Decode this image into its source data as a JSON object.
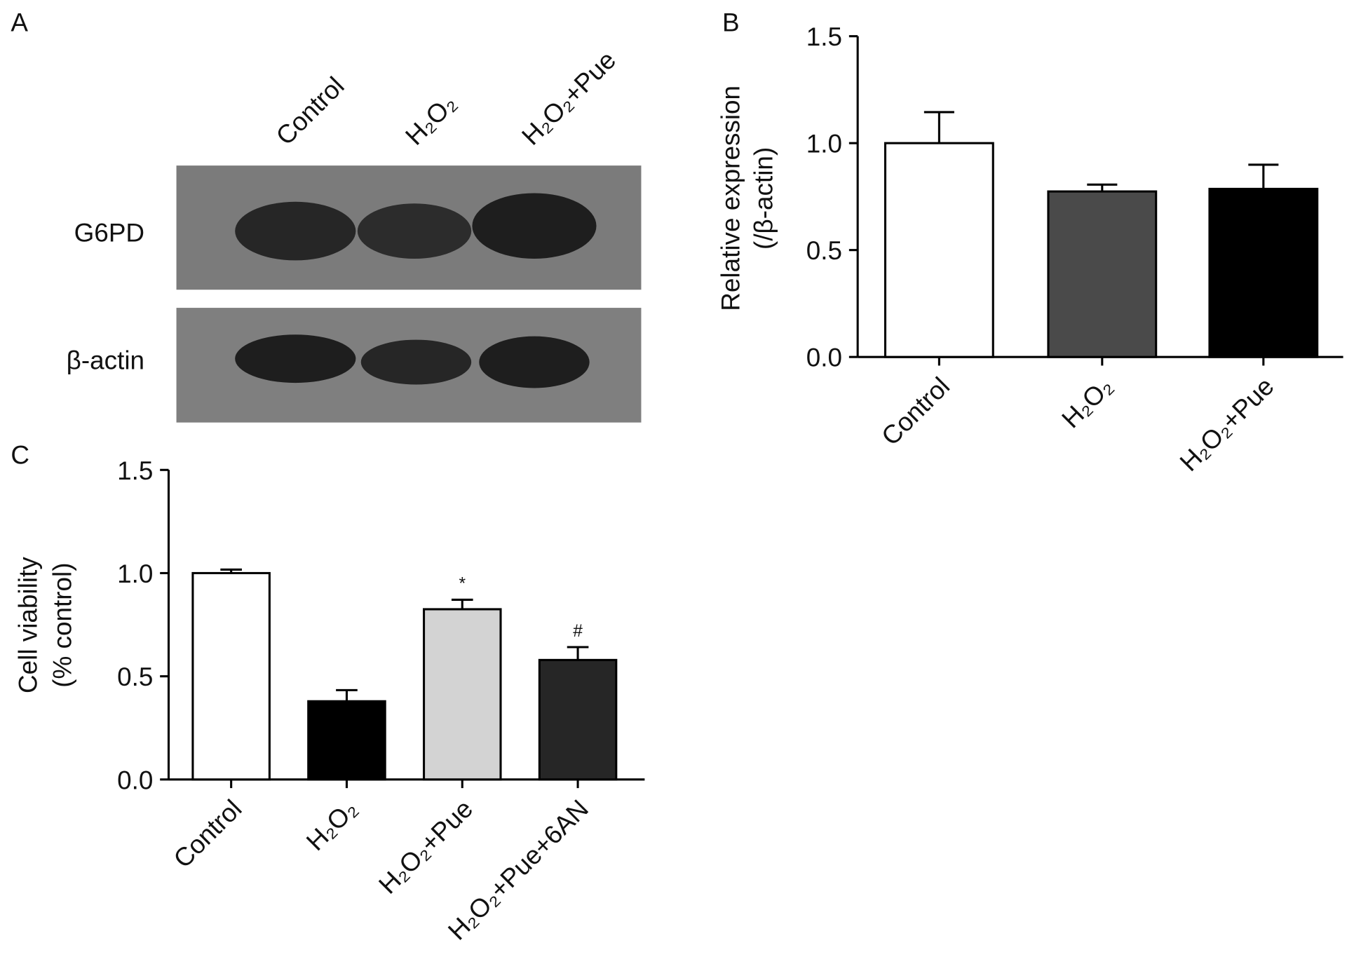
{
  "blot": {
    "panel_label": "A",
    "lanes": [
      "Control",
      "H₂O₂",
      "H₂O₂+Pue"
    ],
    "rows": [
      "G6PD",
      "β-actin"
    ]
  },
  "chart_data": [
    {
      "type": "bar",
      "panel_label": "B",
      "ylabel": [
        "Relative expression",
        "(/β-actin)"
      ],
      "categories": [
        "Control",
        "H₂O₂",
        "H₂O₂+Pue"
      ],
      "values": [
        1.0,
        0.774,
        0.786
      ],
      "errors": [
        0.145,
        0.032,
        0.113
      ],
      "colors": [
        "#ffffff",
        "#4a4a4a",
        "#000000"
      ],
      "ylim": [
        0,
        1.5
      ],
      "yticks": [
        {
          "value": 0,
          "label": "0.0"
        },
        {
          "value": 0.5,
          "label": "0.5"
        },
        {
          "value": 1,
          "label": "1.0"
        },
        {
          "value": 1.5,
          "label": "1.5"
        }
      ]
    },
    {
      "type": "bar",
      "panel_label": "C",
      "ylabel": [
        "Cell viability",
        "(% control)"
      ],
      "categories": [
        "Control",
        "H₂O₂",
        "H₂O₂+Pue",
        "H₂O₂+Pue+6AN"
      ],
      "values": [
        1.0,
        0.379,
        0.825,
        0.579
      ],
      "errors": [
        0.017,
        0.054,
        0.046,
        0.0625
      ],
      "annotations": [
        null,
        null,
        "*",
        "#"
      ],
      "colors": [
        "#ffffff",
        "#000000",
        "#d3d3d3",
        "#262626"
      ],
      "ylim": [
        0,
        1.5
      ],
      "yticks": [
        {
          "value": 0,
          "label": "0.0"
        },
        {
          "value": 0.5,
          "label": "0.5"
        },
        {
          "value": 1,
          "label": "1.0"
        },
        {
          "value": 1.5,
          "label": "1.5"
        }
      ]
    }
  ]
}
